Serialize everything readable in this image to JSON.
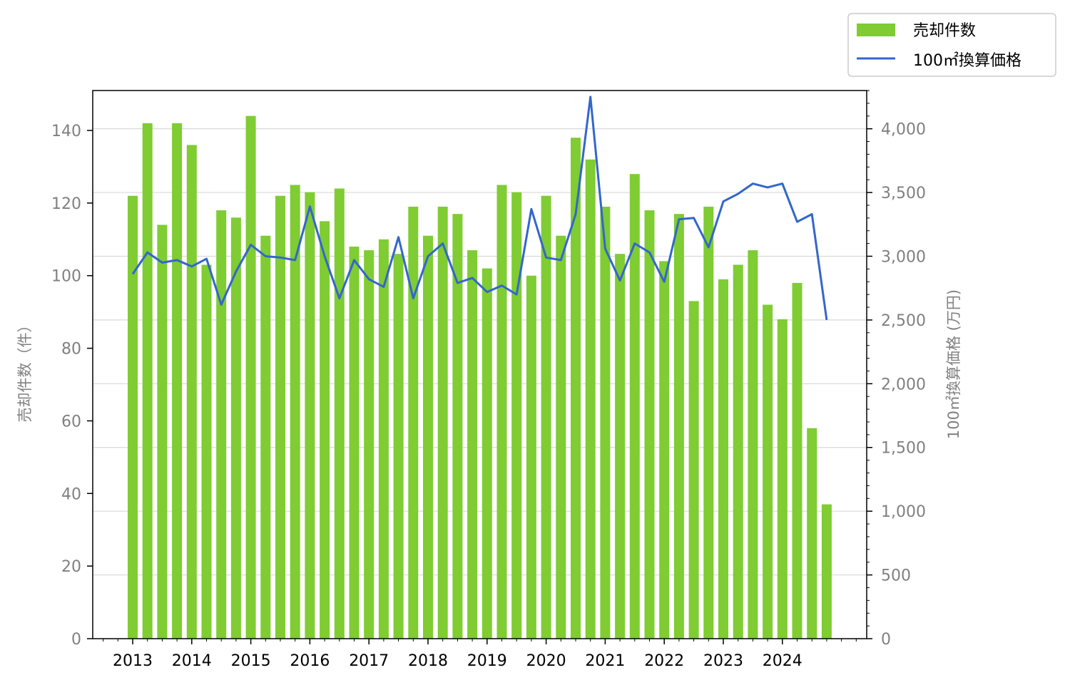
{
  "chart_data": {
    "type": "bar",
    "title": "",
    "xlabel": "",
    "x_tick_labels": [
      "2013",
      "2014",
      "2015",
      "2016",
      "2017",
      "2018",
      "2019",
      "2020",
      "2021",
      "2022",
      "2023",
      "2024"
    ],
    "ylabel_left": "売却件数（件）",
    "ylabel_right": "100㎡換算価格 (万円)",
    "ylim_left": [
      0,
      151
    ],
    "ylim_right": [
      0,
      4300
    ],
    "yticks_left": [
      0,
      20,
      40,
      60,
      80,
      100,
      120,
      140
    ],
    "yticks_right": [
      0,
      500,
      1000,
      1500,
      2000,
      2500,
      3000,
      3500,
      4000
    ],
    "yticks_right_labels": [
      "0",
      "500",
      "1,000",
      "1,500",
      "2,000",
      "2,500",
      "3,000",
      "3,500",
      "4,000"
    ],
    "grid": "horizontal (right axis)",
    "legend_position": "top-right outside",
    "quarters": [
      "2013Q1",
      "2013Q2",
      "2013Q3",
      "2013Q4",
      "2014Q1",
      "2014Q2",
      "2014Q3",
      "2014Q4",
      "2015Q1",
      "2015Q2",
      "2015Q3",
      "2015Q4",
      "2016Q1",
      "2016Q2",
      "2016Q3",
      "2016Q4",
      "2017Q1",
      "2017Q2",
      "2017Q3",
      "2017Q4",
      "2018Q1",
      "2018Q2",
      "2018Q3",
      "2018Q4",
      "2019Q1",
      "2019Q2",
      "2019Q3",
      "2019Q4",
      "2020Q1",
      "2020Q2",
      "2020Q3",
      "2020Q4",
      "2021Q1",
      "2021Q2",
      "2021Q3",
      "2021Q4",
      "2022Q1",
      "2022Q2",
      "2022Q3",
      "2022Q4",
      "2023Q1",
      "2023Q2",
      "2023Q3",
      "2023Q4",
      "2024Q1",
      "2024Q2",
      "2024Q3",
      "2024Q4"
    ],
    "series": [
      {
        "name": "売却件数",
        "type": "bar",
        "axis": "left",
        "color": "#7fcc33",
        "values": [
          122,
          142,
          114,
          142,
          136,
          103,
          118,
          116,
          144,
          111,
          122,
          125,
          123,
          115,
          124,
          108,
          107,
          110,
          106,
          119,
          111,
          119,
          117,
          107,
          102,
          125,
          123,
          100,
          122,
          111,
          138,
          132,
          119,
          106,
          128,
          118,
          104,
          117,
          93,
          119,
          99,
          103,
          107,
          92,
          88,
          98,
          58,
          37
        ]
      },
      {
        "name": "100㎡換算価格",
        "type": "line",
        "axis": "right",
        "color": "#3366cc",
        "values": [
          2860,
          3030,
          2950,
          2970,
          2920,
          2980,
          2620,
          2880,
          3090,
          3000,
          2990,
          2970,
          3390,
          3000,
          2670,
          2970,
          2820,
          2760,
          3150,
          2670,
          3000,
          3100,
          2790,
          2830,
          2720,
          2770,
          2700,
          3370,
          2990,
          2970,
          3330,
          4250,
          3060,
          2810,
          3100,
          3030,
          2800,
          3290,
          3300,
          3070,
          3430,
          3490,
          3570,
          3540,
          3570,
          3270,
          3330,
          2500
        ]
      }
    ]
  }
}
